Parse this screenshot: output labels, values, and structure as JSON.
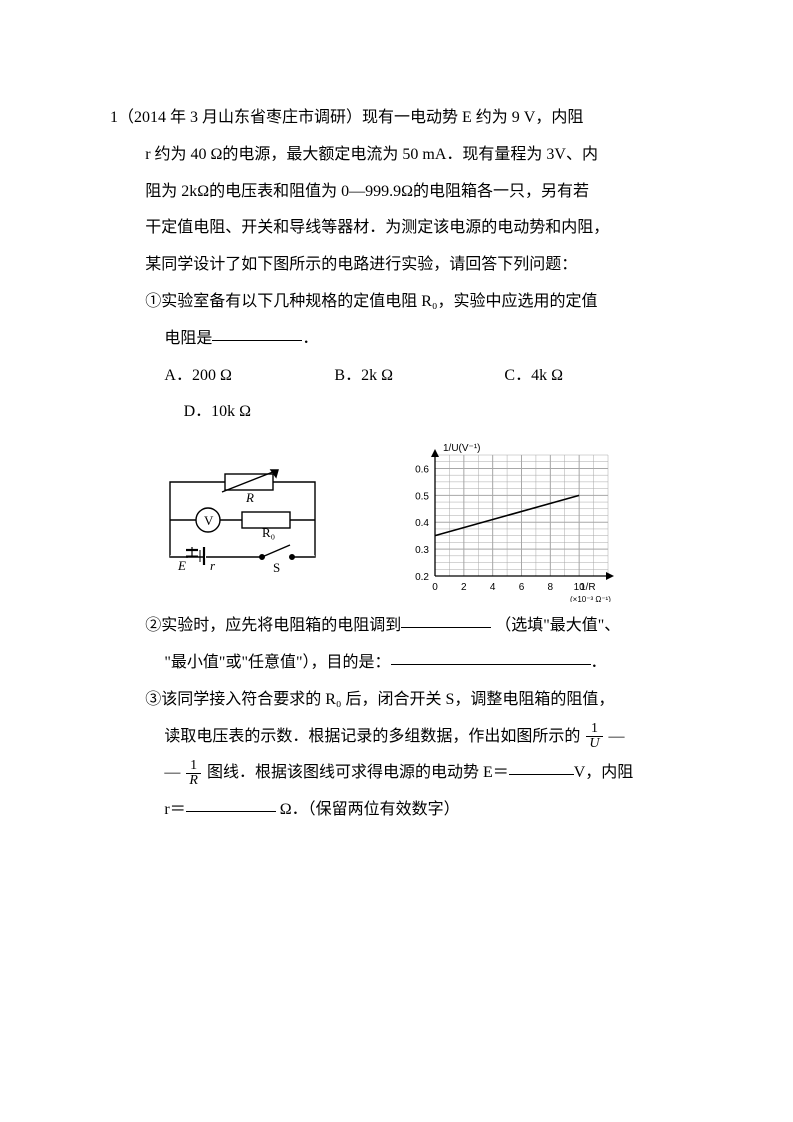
{
  "q": {
    "number": "1",
    "source": "（2014 年 3 月山东省枣庄市调研）",
    "p1": "现有一电动势 E 约为 9 V，内阻",
    "p2": "r 约为 40 Ω的电源，最大额定电流为 50 mA．现有量程为 3V、内",
    "p3": "阻为 2kΩ的电压表和阻值为 0—999.9Ω的电阻箱各一只，另有若",
    "p4": "干定值电阻、开关和导线等器材．为测定该电源的电动势和内阻，",
    "p5": "某同学设计了如下图所示的电路进行实验，请回答下列问题：",
    "s1a": "①实验室备有以下几种规格的定值电阻 R₀，实验中应选用的定值",
    "s1b": "电阻是",
    "s1c": "．",
    "options": {
      "A": "A．200 Ω",
      "B": "B．2k Ω",
      "C": "C．4k Ω",
      "D": "D．10k Ω"
    },
    "s2a": "②实验时，应先将电阻箱的电阻调到",
    "s2b": "（选填\"最大值\"、",
    "s2c": "\"最小值\"或\"任意值\"），目的是：",
    "s2d": "．",
    "s3a": "③该同学接入符合要求的 R₀ 后，闭合开关 S，调整电阻箱的阻值，",
    "s3b": "读取电压表的示数．根据记录的多组数据，作出如图所示的",
    "s3c": "—",
    "s3d": "—",
    "s3e": "图线．根据该图线可求得电源的电动势 E＝",
    "s3f": "V，内阻",
    "s3g": "r＝",
    "s3h": "Ω．（保留两位有效数字）"
  },
  "circuit": {
    "labels": {
      "R": "R",
      "V": "V",
      "R0": "R₀",
      "E": "E",
      "r": "r",
      "S": "S"
    },
    "stroke": "#000000",
    "bg": "#ffffff"
  },
  "chart": {
    "type": "line",
    "bg": "#ffffff",
    "grid_color": "#a8a8a8",
    "axis_color": "#000000",
    "line_color": "#000000",
    "line_width": 1.6,
    "xlabel": "1/R",
    "xunit": "(×10⁻³ Ω⁻¹)",
    "ylabel": "1/U(V⁻¹)",
    "xlim": [
      0,
      12
    ],
    "ylim": [
      0.2,
      0.65
    ],
    "xtick_step": 2,
    "xticks": [
      0,
      2,
      4,
      6,
      8,
      10
    ],
    "yticks": [
      0.2,
      0.3,
      0.4,
      0.5,
      0.6
    ],
    "line_points": [
      [
        0,
        0.35
      ],
      [
        10,
        0.5
      ]
    ],
    "tick_fontsize": 10,
    "label_fontsize": 10
  }
}
